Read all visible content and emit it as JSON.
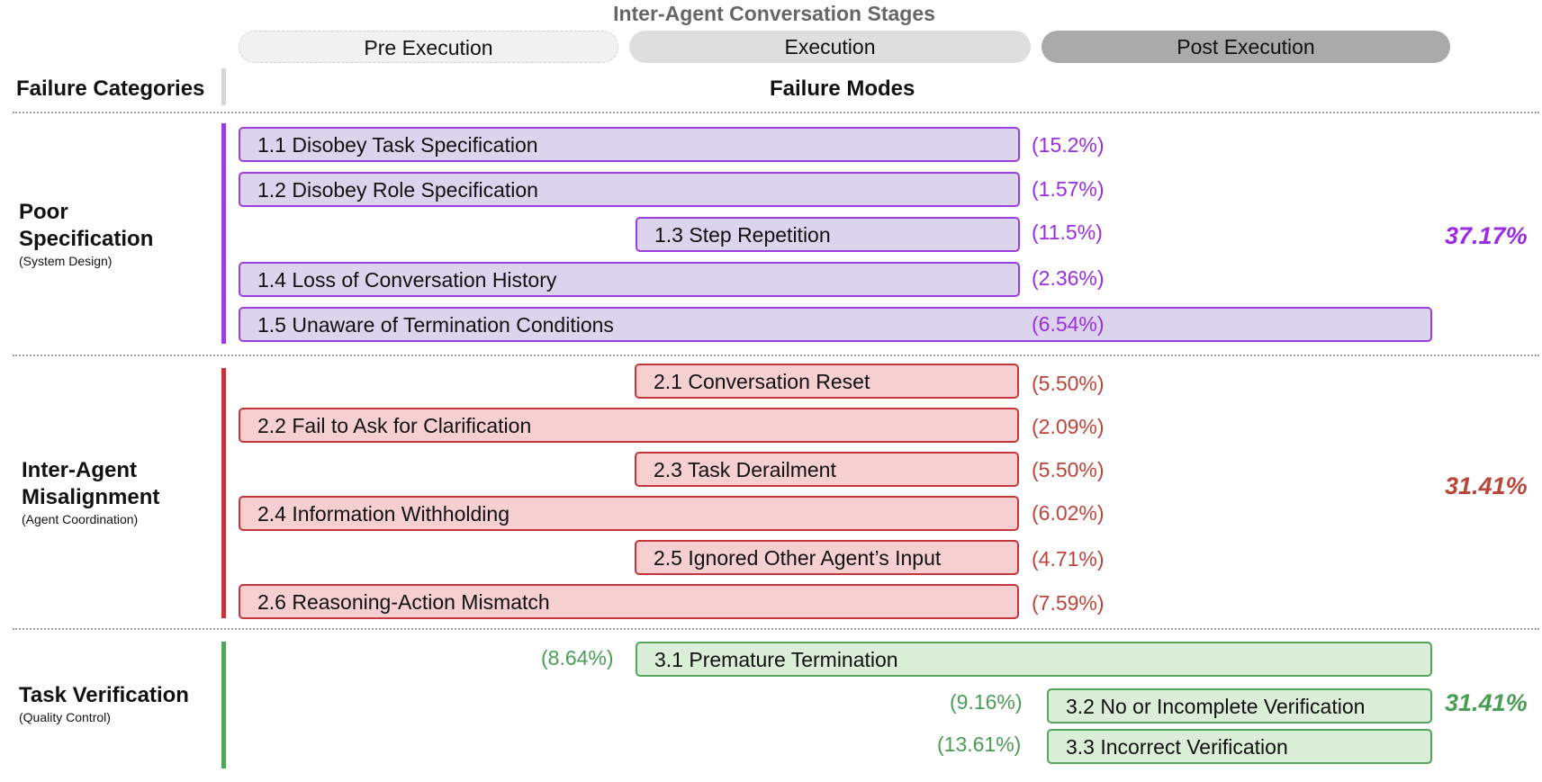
{
  "header": {
    "stages_title": "Inter-Agent Conversation Stages",
    "stages": [
      "Pre Execution",
      "Execution",
      "Post Execution"
    ],
    "categories_label": "Failure Categories",
    "modes_label": "Failure Modes"
  },
  "colors": {
    "purple": "#9b3ee0",
    "red": "#c4363c",
    "green": "#53a55b"
  },
  "categories": [
    {
      "name_lines": [
        "Poor",
        "Specification"
      ],
      "subtitle": "(System Design)",
      "total": "37.17%",
      "color": "purple",
      "modes": [
        {
          "label": "1.1 Disobey Task Specification",
          "percent": "(15.2%)",
          "stages": [
            "Pre Execution",
            "Execution"
          ]
        },
        {
          "label": "1.2 Disobey Role Specification",
          "percent": "(1.57%)",
          "stages": [
            "Pre Execution",
            "Execution"
          ]
        },
        {
          "label": "1.3 Step Repetition",
          "percent": "(11.5%)",
          "stages": [
            "Execution"
          ]
        },
        {
          "label": "1.4 Loss of Conversation History",
          "percent": "(2.36%)",
          "stages": [
            "Pre Execution",
            "Execution"
          ]
        },
        {
          "label": "1.5 Unaware of Termination Conditions",
          "percent": "(6.54%)",
          "stages": [
            "Pre Execution",
            "Execution",
            "Post Execution"
          ]
        }
      ]
    },
    {
      "name_lines": [
        "Inter-Agent",
        "Misalignment"
      ],
      "subtitle": "(Agent Coordination)",
      "total": "31.41%",
      "color": "red",
      "modes": [
        {
          "label": "2.1 Conversation Reset",
          "percent": "(5.50%)",
          "stages": [
            "Execution"
          ]
        },
        {
          "label": "2.2 Fail to Ask for Clarification",
          "percent": "(2.09%)",
          "stages": [
            "Pre Execution",
            "Execution"
          ]
        },
        {
          "label": "2.3 Task Derailment",
          "percent": "(5.50%)",
          "stages": [
            "Execution"
          ]
        },
        {
          "label": "2.4 Information Withholding",
          "percent": "(6.02%)",
          "stages": [
            "Pre Execution",
            "Execution"
          ]
        },
        {
          "label": "2.5 Ignored Other Agent’s Input",
          "percent": "(4.71%)",
          "stages": [
            "Execution"
          ]
        },
        {
          "label": "2.6 Reasoning-Action Mismatch",
          "percent": "(7.59%)",
          "stages": [
            "Pre Execution",
            "Execution"
          ]
        }
      ]
    },
    {
      "name_lines": [
        "Task Verification"
      ],
      "subtitle": "(Quality Control)",
      "total": "31.41%",
      "color": "green",
      "modes": [
        {
          "label": "3.1  Premature Termination",
          "percent": "(8.64%)",
          "stages": [
            "Execution",
            "Post Execution"
          ]
        },
        {
          "label": "3.2 No or Incomplete Verification",
          "percent": "(9.16%)",
          "stages": [
            "Post Execution"
          ]
        },
        {
          "label": "3.3 Incorrect Verification",
          "percent": "(13.61%)",
          "stages": [
            "Post Execution"
          ]
        }
      ]
    }
  ]
}
